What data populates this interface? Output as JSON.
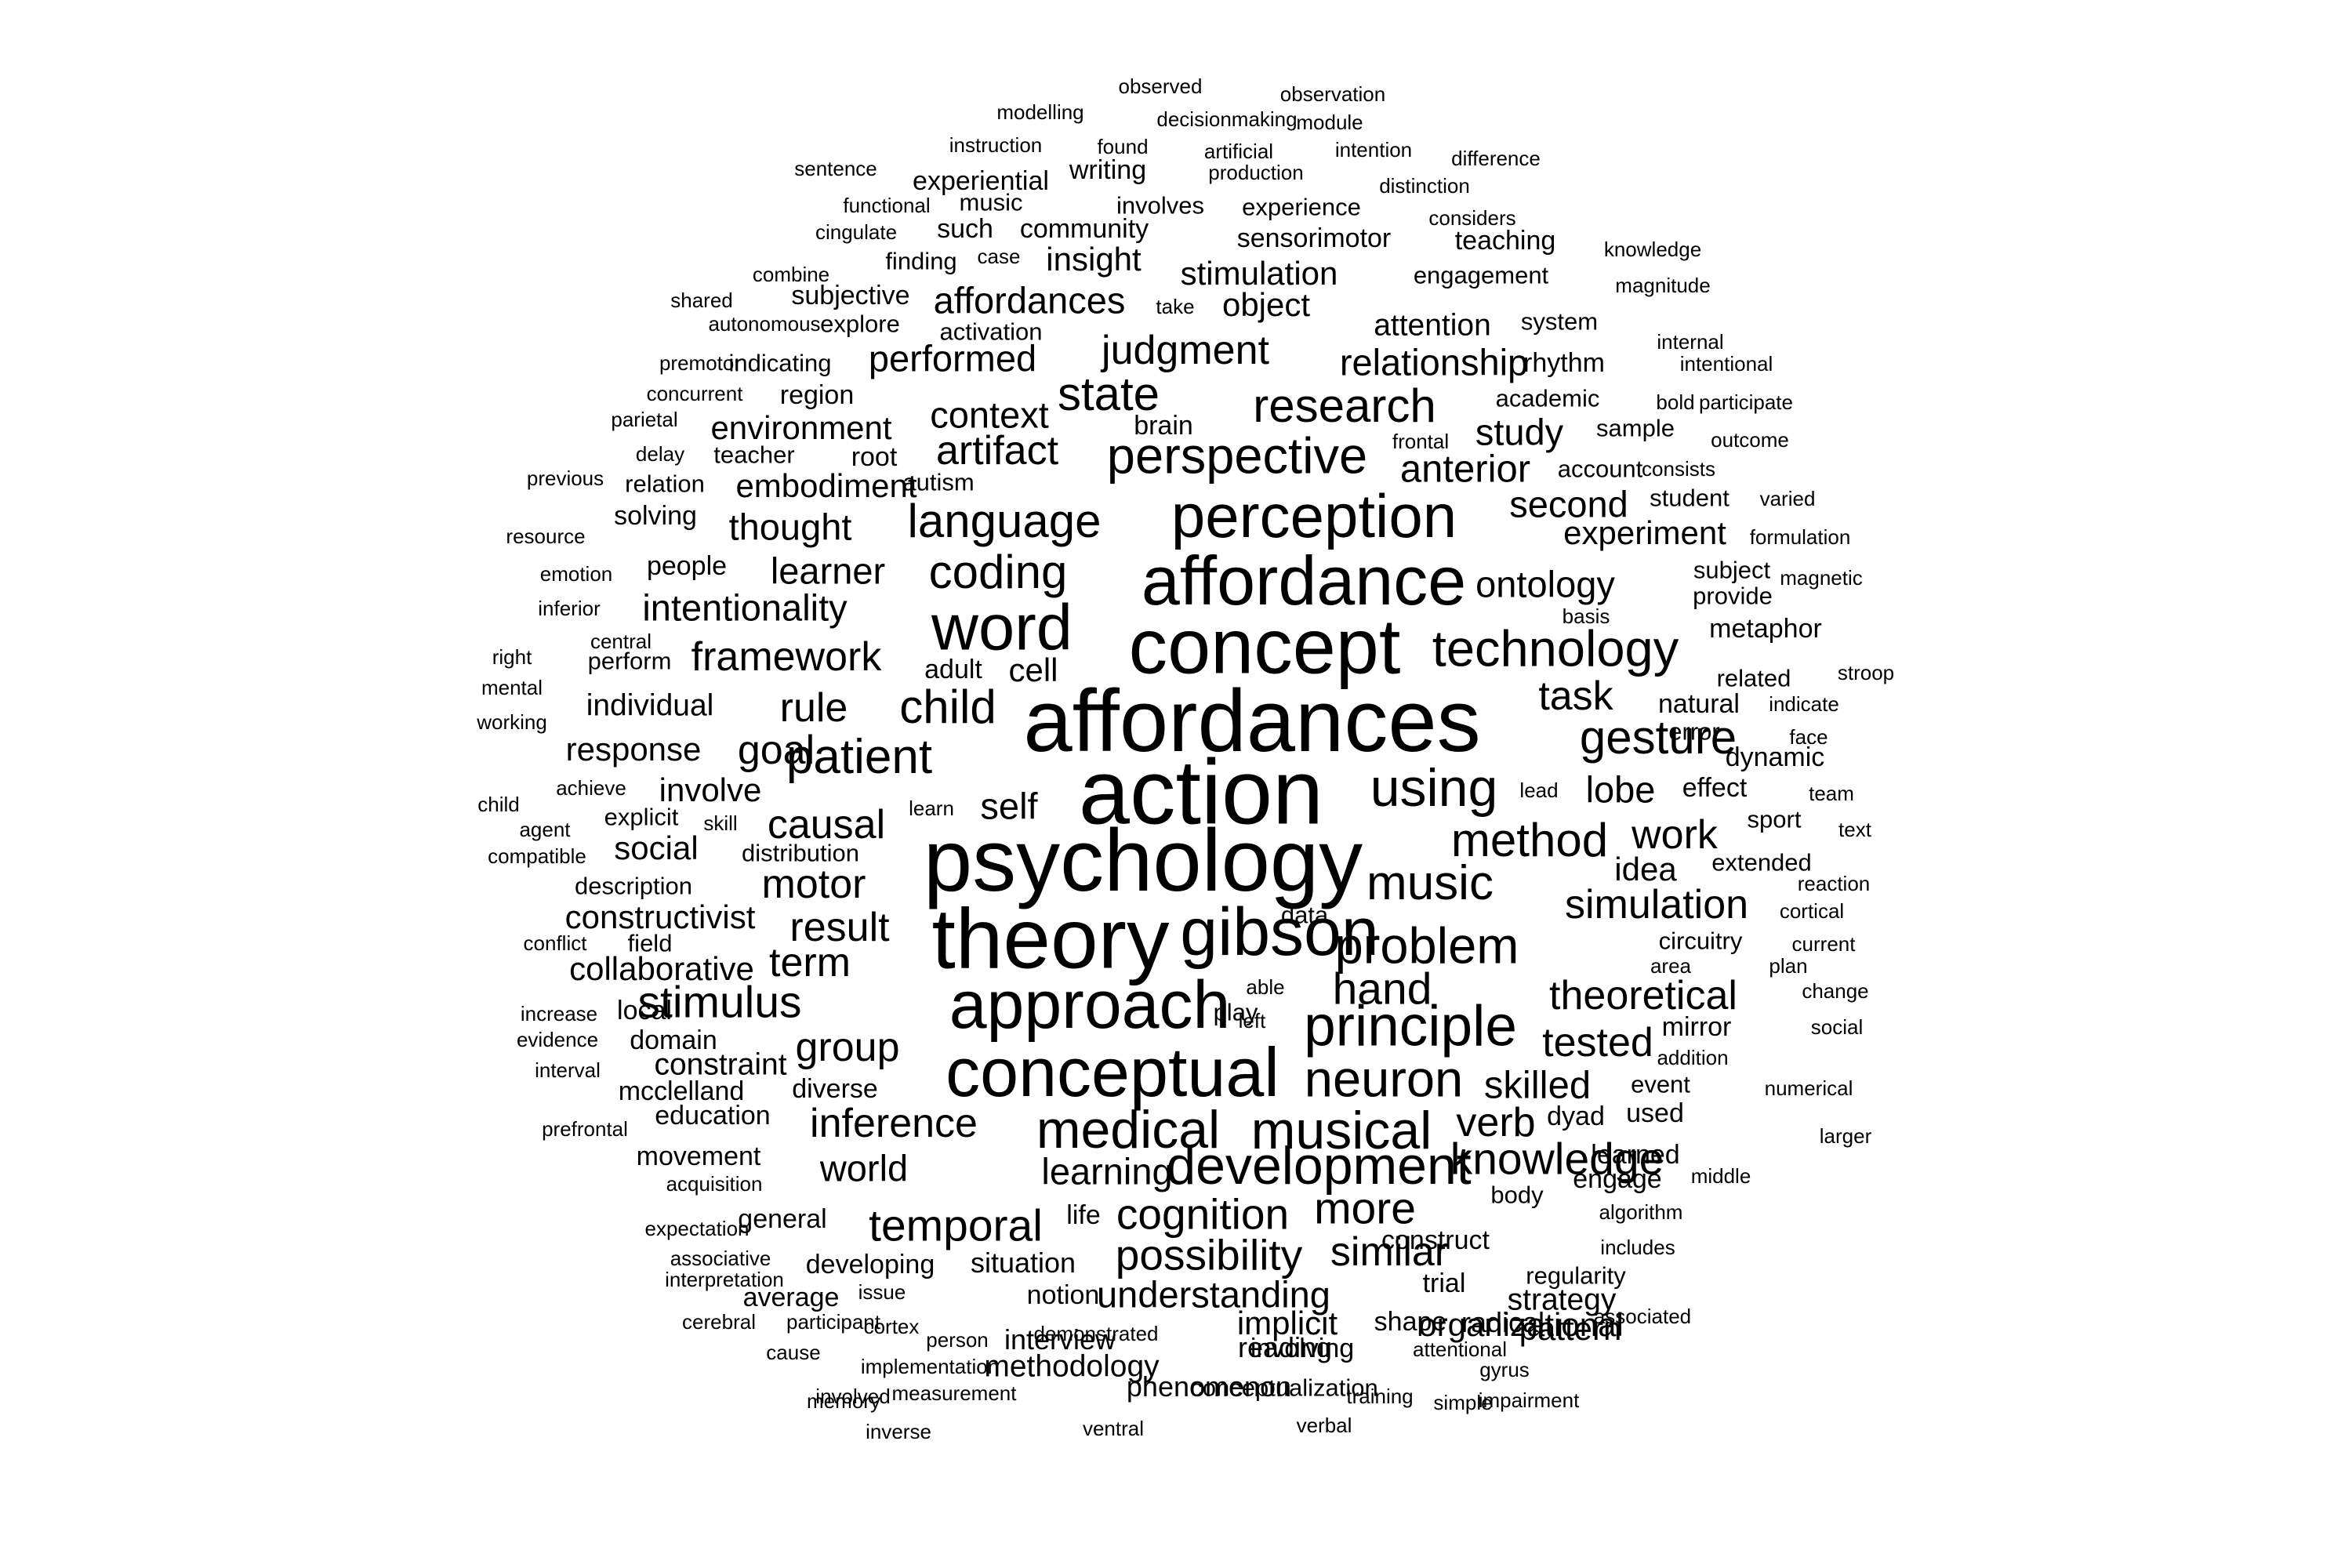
{
  "text_color": "#000000",
  "background_color": "#ffffff",
  "words": [
    {
      "text": "observed",
      "weight": 1
    },
    {
      "text": "modelling",
      "weight": 1
    },
    {
      "text": "observation",
      "weight": 1
    },
    {
      "text": "decisionmaking",
      "weight": 1
    },
    {
      "text": "module",
      "weight": 1
    },
    {
      "text": "instruction",
      "weight": 1
    },
    {
      "text": "found",
      "weight": 1
    },
    {
      "text": "artificial",
      "weight": 1
    },
    {
      "text": "intention",
      "weight": 1
    },
    {
      "text": "sentence",
      "weight": 1
    },
    {
      "text": "writing",
      "weight": 1.3
    },
    {
      "text": "production",
      "weight": 1
    },
    {
      "text": "difference",
      "weight": 1
    },
    {
      "text": "experiential",
      "weight": 1.3
    },
    {
      "text": "distinction",
      "weight": 1
    },
    {
      "text": "functional",
      "weight": 1
    },
    {
      "text": "music",
      "weight": 1.2
    },
    {
      "text": "involves",
      "weight": 1.2
    },
    {
      "text": "experience",
      "weight": 1.2
    },
    {
      "text": "considers",
      "weight": 1
    },
    {
      "text": "cingulate",
      "weight": 1
    },
    {
      "text": "such",
      "weight": 1.3
    },
    {
      "text": "community",
      "weight": 1.3
    },
    {
      "text": "teaching",
      "weight": 1.3
    },
    {
      "text": "sensorimotor",
      "weight": 1.3
    },
    {
      "text": "knowledge",
      "weight": 1
    },
    {
      "text": "finding",
      "weight": 1.2
    },
    {
      "text": "case",
      "weight": 1
    },
    {
      "text": "insight",
      "weight": 1.6
    },
    {
      "text": "combine",
      "weight": 1
    },
    {
      "text": "stimulation",
      "weight": 1.6
    },
    {
      "text": "engagement",
      "weight": 1.2
    },
    {
      "text": "magnitude",
      "weight": 1
    },
    {
      "text": "shared",
      "weight": 1
    },
    {
      "text": "subjective",
      "weight": 1.3
    },
    {
      "text": "affordances",
      "weight": 1.8
    },
    {
      "text": "take",
      "weight": 1
    },
    {
      "text": "object",
      "weight": 1.6
    },
    {
      "text": "autonomous",
      "weight": 1
    },
    {
      "text": "explore",
      "weight": 1.2
    },
    {
      "text": "activation",
      "weight": 1.2
    },
    {
      "text": "attention",
      "weight": 1.5
    },
    {
      "text": "system",
      "weight": 1.2
    },
    {
      "text": "internal",
      "weight": 1
    },
    {
      "text": "judgment",
      "weight": 2
    },
    {
      "text": "premotor",
      "weight": 1
    },
    {
      "text": "indicating",
      "weight": 1.2
    },
    {
      "text": "performed",
      "weight": 1.8
    },
    {
      "text": "relationship",
      "weight": 1.8
    },
    {
      "text": "rhythm",
      "weight": 1.3
    },
    {
      "text": "intentional",
      "weight": 1
    },
    {
      "text": "concurrent",
      "weight": 1
    },
    {
      "text": "region",
      "weight": 1.3
    },
    {
      "text": "state",
      "weight": 2.3
    },
    {
      "text": "academic",
      "weight": 1.2
    },
    {
      "text": "bold",
      "weight": 1
    },
    {
      "text": "participate",
      "weight": 1
    },
    {
      "text": "parietal",
      "weight": 1
    },
    {
      "text": "environment",
      "weight": 1.6
    },
    {
      "text": "context",
      "weight": 1.8
    },
    {
      "text": "research",
      "weight": 2.3
    },
    {
      "text": "brain",
      "weight": 1.3
    },
    {
      "text": "study",
      "weight": 1.8
    },
    {
      "text": "sample",
      "weight": 1.2
    },
    {
      "text": "outcome",
      "weight": 1
    },
    {
      "text": "delay",
      "weight": 1
    },
    {
      "text": "teacher",
      "weight": 1.2
    },
    {
      "text": "root",
      "weight": 1.3
    },
    {
      "text": "artifact",
      "weight": 2
    },
    {
      "text": "perspective",
      "weight": 2.5
    },
    {
      "text": "frontal",
      "weight": 1
    },
    {
      "text": "previous",
      "weight": 1
    },
    {
      "text": "relation",
      "weight": 1.2
    },
    {
      "text": "embodiment",
      "weight": 1.6
    },
    {
      "text": "autism",
      "weight": 1.2
    },
    {
      "text": "anterior",
      "weight": 1.9
    },
    {
      "text": "account",
      "weight": 1.2
    },
    {
      "text": "consists",
      "weight": 1
    },
    {
      "text": "student",
      "weight": 1.2
    },
    {
      "text": "varied",
      "weight": 1
    },
    {
      "text": "resource",
      "weight": 1
    },
    {
      "text": "solving",
      "weight": 1.3
    },
    {
      "text": "thought",
      "weight": 1.8
    },
    {
      "text": "language",
      "weight": 2.3
    },
    {
      "text": "perception",
      "weight": 3
    },
    {
      "text": "second",
      "weight": 1.8
    },
    {
      "text": "experiment",
      "weight": 1.6
    },
    {
      "text": "formulation",
      "weight": 1
    },
    {
      "text": "emotion",
      "weight": 1
    },
    {
      "text": "people",
      "weight": 1.3
    },
    {
      "text": "learner",
      "weight": 1.8
    },
    {
      "text": "coding",
      "weight": 2.3
    },
    {
      "text": "affordance",
      "weight": 3.4
    },
    {
      "text": "ontology",
      "weight": 1.8
    },
    {
      "text": "subject",
      "weight": 1.2
    },
    {
      "text": "magnetic",
      "weight": 1
    },
    {
      "text": "inferior",
      "weight": 1
    },
    {
      "text": "intentionality",
      "weight": 1.8
    },
    {
      "text": "provide",
      "weight": 1.2
    },
    {
      "text": "metaphor",
      "weight": 1.3
    },
    {
      "text": "basis",
      "weight": 1
    },
    {
      "text": "word",
      "weight": 3.2
    },
    {
      "text": "central",
      "weight": 1
    },
    {
      "text": "right",
      "weight": 1
    },
    {
      "text": "perform",
      "weight": 1.2
    },
    {
      "text": "framework",
      "weight": 2
    },
    {
      "text": "concept",
      "weight": 3.8
    },
    {
      "text": "technology",
      "weight": 2.5
    },
    {
      "text": "related",
      "weight": 1.2
    },
    {
      "text": "stroop",
      "weight": 1
    },
    {
      "text": "adult",
      "weight": 1.3
    },
    {
      "text": "cell",
      "weight": 1.6
    },
    {
      "text": "mental",
      "weight": 1
    },
    {
      "text": "task",
      "weight": 2
    },
    {
      "text": "natural",
      "weight": 1.3
    },
    {
      "text": "indicate",
      "weight": 1
    },
    {
      "text": "individual",
      "weight": 1.5
    },
    {
      "text": "child",
      "weight": 2.3
    },
    {
      "text": "rule",
      "weight": 2
    },
    {
      "text": "affordances",
      "weight": 4.3
    },
    {
      "text": "working",
      "weight": 1
    },
    {
      "text": "error",
      "weight": 1.2
    },
    {
      "text": "face",
      "weight": 1
    },
    {
      "text": "gesture",
      "weight": 2.3
    },
    {
      "text": "dynamic",
      "weight": 1.3
    },
    {
      "text": "response",
      "weight": 1.6
    },
    {
      "text": "goal",
      "weight": 2
    },
    {
      "text": "patient",
      "weight": 2.4
    },
    {
      "text": "achieve",
      "weight": 1
    },
    {
      "text": "involve",
      "weight": 1.6
    },
    {
      "text": "action",
      "weight": 4.5
    },
    {
      "text": "using",
      "weight": 2.6
    },
    {
      "text": "lead",
      "weight": 1
    },
    {
      "text": "lobe",
      "weight": 1.8
    },
    {
      "text": "effect",
      "weight": 1.3
    },
    {
      "text": "team",
      "weight": 1
    },
    {
      "text": "child",
      "weight": 1
    },
    {
      "text": "explicit",
      "weight": 1.2
    },
    {
      "text": "learn",
      "weight": 1
    },
    {
      "text": "self",
      "weight": 1.8
    },
    {
      "text": "causal",
      "weight": 2
    },
    {
      "text": "skill",
      "weight": 1
    },
    {
      "text": "agent",
      "weight": 1
    },
    {
      "text": "sport",
      "weight": 1.2
    },
    {
      "text": "text",
      "weight": 1
    },
    {
      "text": "social",
      "weight": 1.6
    },
    {
      "text": "work",
      "weight": 2
    },
    {
      "text": "method",
      "weight": 2.3
    },
    {
      "text": "compatible",
      "weight": 1
    },
    {
      "text": "distribution",
      "weight": 1.2
    },
    {
      "text": "psychology",
      "weight": 4.3
    },
    {
      "text": "idea",
      "weight": 1.6
    },
    {
      "text": "extended",
      "weight": 1.2
    },
    {
      "text": "description",
      "weight": 1.2
    },
    {
      "text": "motor",
      "weight": 2
    },
    {
      "text": "music",
      "weight": 2.4
    },
    {
      "text": "reaction",
      "weight": 1
    },
    {
      "text": "constructivist",
      "weight": 1.6
    },
    {
      "text": "simulation",
      "weight": 2
    },
    {
      "text": "data",
      "weight": 1.2
    },
    {
      "text": "result",
      "weight": 2
    },
    {
      "text": "cortical",
      "weight": 1
    },
    {
      "text": "conflict",
      "weight": 1
    },
    {
      "text": "field",
      "weight": 1.2
    },
    {
      "text": "theory",
      "weight": 4.2
    },
    {
      "text": "gibson",
      "weight": 3.3
    },
    {
      "text": "circuitry",
      "weight": 1.2
    },
    {
      "text": "current",
      "weight": 1
    },
    {
      "text": "collaborative",
      "weight": 1.6
    },
    {
      "text": "term",
      "weight": 2
    },
    {
      "text": "problem",
      "weight": 2.5
    },
    {
      "text": "area",
      "weight": 1
    },
    {
      "text": "plan",
      "weight": 1
    },
    {
      "text": "stimulus",
      "weight": 2.2
    },
    {
      "text": "approach",
      "weight": 3.3
    },
    {
      "text": "hand",
      "weight": 2.2
    },
    {
      "text": "able",
      "weight": 1
    },
    {
      "text": "play",
      "weight": 1.2
    },
    {
      "text": "theoretical",
      "weight": 2
    },
    {
      "text": "change",
      "weight": 1
    },
    {
      "text": "increase",
      "weight": 1
    },
    {
      "text": "local",
      "weight": 1.3
    },
    {
      "text": "left",
      "weight": 1
    },
    {
      "text": "principle",
      "weight": 2.8
    },
    {
      "text": "mirror",
      "weight": 1.3
    },
    {
      "text": "social",
      "weight": 1
    },
    {
      "text": "evidence",
      "weight": 1
    },
    {
      "text": "domain",
      "weight": 1.3
    },
    {
      "text": "group",
      "weight": 2
    },
    {
      "text": "tested",
      "weight": 2
    },
    {
      "text": "addition",
      "weight": 1
    },
    {
      "text": "interval",
      "weight": 1
    },
    {
      "text": "constraint",
      "weight": 1.5
    },
    {
      "text": "conceptual",
      "weight": 3.4
    },
    {
      "text": "neuron",
      "weight": 2.5
    },
    {
      "text": "skilled",
      "weight": 1.9
    },
    {
      "text": "event",
      "weight": 1.2
    },
    {
      "text": "numerical",
      "weight": 1
    },
    {
      "text": "mcclelland",
      "weight": 1.3
    },
    {
      "text": "diverse",
      "weight": 1.3
    },
    {
      "text": "dyad",
      "weight": 1.3
    },
    {
      "text": "used",
      "weight": 1.3
    },
    {
      "text": "education",
      "weight": 1.3
    },
    {
      "text": "inference",
      "weight": 2
    },
    {
      "text": "medical",
      "weight": 2.6
    },
    {
      "text": "musical",
      "weight": 2.6
    },
    {
      "text": "verb",
      "weight": 2
    },
    {
      "text": "prefrontal",
      "weight": 1
    },
    {
      "text": "larger",
      "weight": 1
    },
    {
      "text": "learned",
      "weight": 1.3
    },
    {
      "text": "movement",
      "weight": 1.3
    },
    {
      "text": "world",
      "weight": 1.8
    },
    {
      "text": "learning",
      "weight": 1.8
    },
    {
      "text": "development",
      "weight": 2.6
    },
    {
      "text": "knowledge",
      "weight": 2.2
    },
    {
      "text": "engage",
      "weight": 1.3
    },
    {
      "text": "middle",
      "weight": 1
    },
    {
      "text": "acquisition",
      "weight": 1
    },
    {
      "text": "body",
      "weight": 1.2
    },
    {
      "text": "algorithm",
      "weight": 1
    },
    {
      "text": "general",
      "weight": 1.3
    },
    {
      "text": "life",
      "weight": 1.3
    },
    {
      "text": "cognition",
      "weight": 2.1
    },
    {
      "text": "more",
      "weight": 2.2
    },
    {
      "text": "expectation",
      "weight": 1
    },
    {
      "text": "temporal",
      "weight": 2.2
    },
    {
      "text": "construct",
      "weight": 1.3
    },
    {
      "text": "includes",
      "weight": 1
    },
    {
      "text": "associative",
      "weight": 1
    },
    {
      "text": "developing",
      "weight": 1.3
    },
    {
      "text": "situation",
      "weight": 1.4
    },
    {
      "text": "possibility",
      "weight": 2.1
    },
    {
      "text": "similar",
      "weight": 2
    },
    {
      "text": "regularity",
      "weight": 1.2
    },
    {
      "text": "interpretation",
      "weight": 1
    },
    {
      "text": "trial",
      "weight": 1.3
    },
    {
      "text": "average",
      "weight": 1.3
    },
    {
      "text": "issue",
      "weight": 1
    },
    {
      "text": "notion",
      "weight": 1.3
    },
    {
      "text": "understanding",
      "weight": 1.8
    },
    {
      "text": "strategy",
      "weight": 1.5
    },
    {
      "text": "cerebral",
      "weight": 1
    },
    {
      "text": "participant",
      "weight": 1
    },
    {
      "text": "cortex",
      "weight": 1
    },
    {
      "text": "interview",
      "weight": 1.4
    },
    {
      "text": "implicit",
      "weight": 1.6
    },
    {
      "text": "radical",
      "weight": 1.4
    },
    {
      "text": "pattern",
      "weight": 1.6
    },
    {
      "text": "cause",
      "weight": 1
    },
    {
      "text": "person",
      "weight": 1
    },
    {
      "text": "demonstrated",
      "weight": 1
    },
    {
      "text": "shape",
      "weight": 1.3
    },
    {
      "text": "involving",
      "weight": 1.3
    },
    {
      "text": "organizational",
      "weight": 1.6
    },
    {
      "text": "associated",
      "weight": 1
    },
    {
      "text": "involved",
      "weight": 1
    },
    {
      "text": "implementation",
      "weight": 1
    },
    {
      "text": "methodology",
      "weight": 1.5
    },
    {
      "text": "reading",
      "weight": 1.4
    },
    {
      "text": "attentional",
      "weight": 1
    },
    {
      "text": "gyrus",
      "weight": 1
    },
    {
      "text": "memory",
      "weight": 1
    },
    {
      "text": "measurement",
      "weight": 1
    },
    {
      "text": "phenomenon",
      "weight": 1.4
    },
    {
      "text": "conceptualization",
      "weight": 1.2
    },
    {
      "text": "training",
      "weight": 1
    },
    {
      "text": "simple",
      "weight": 1
    },
    {
      "text": "impairment",
      "weight": 1
    },
    {
      "text": "inverse",
      "weight": 1
    },
    {
      "text": "ventral",
      "weight": 1
    },
    {
      "text": "verbal",
      "weight": 1
    }
  ]
}
